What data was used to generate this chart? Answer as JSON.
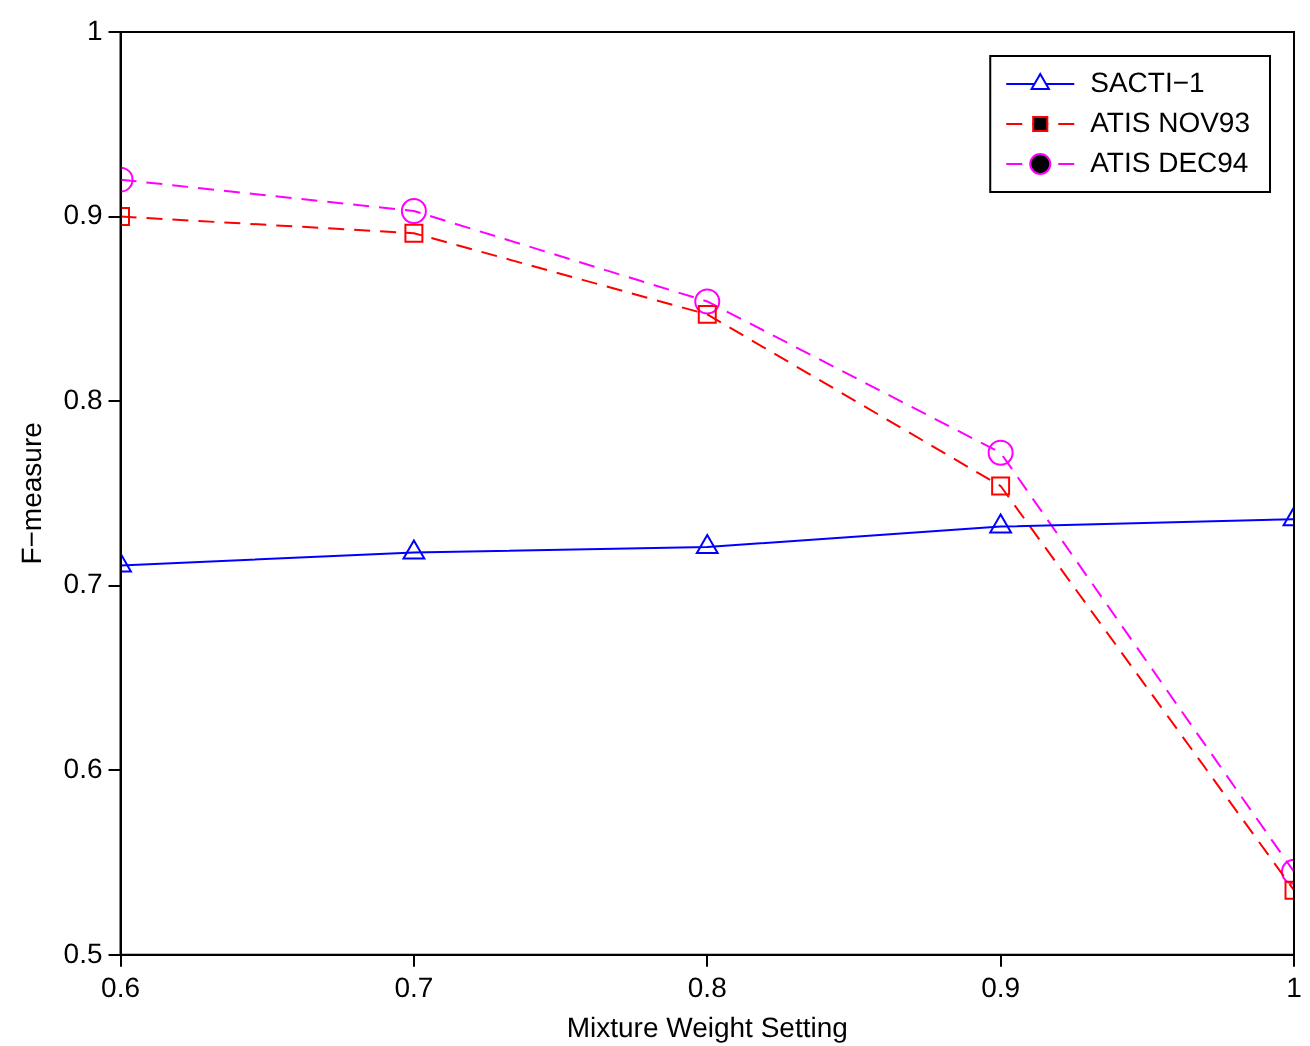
{
  "chart_data": {
    "type": "line",
    "xlabel": "Mixture Weight Setting",
    "ylabel": "F−measure",
    "x": [
      0.6,
      0.7,
      0.8,
      0.9,
      1.0
    ],
    "xlim": [
      0.6,
      1
    ],
    "xticks": [
      0.6,
      0.7,
      0.8,
      0.9,
      1
    ],
    "ylim": [
      0.5,
      1
    ],
    "yticks": [
      0.5,
      0.6,
      0.7,
      0.8,
      0.9,
      1
    ],
    "grid": false,
    "legend": "top right",
    "series": [
      {
        "name": "SACTI−1",
        "color": "#0000ff",
        "marker": "triangle",
        "line_style": "solid",
        "values": [
          0.711,
          0.718,
          0.721,
          0.732,
          0.736
        ]
      },
      {
        "name": "ATIS NOV93",
        "color": "#ff0000",
        "marker": "square",
        "line_style": "dashed",
        "values": [
          0.9,
          0.891,
          0.847,
          0.754,
          0.535
        ]
      },
      {
        "name": "ATIS DEC94",
        "color": "#ff00ff",
        "marker": "circle",
        "line_style": "dashed",
        "values": [
          0.92,
          0.903,
          0.854,
          0.772,
          0.545
        ]
      }
    ]
  }
}
